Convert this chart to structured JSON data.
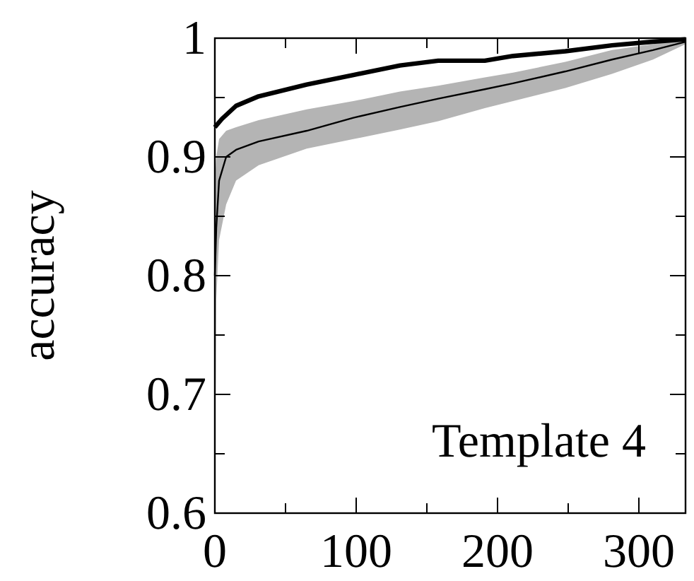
{
  "chart_data": {
    "type": "line",
    "ylabel": "accuracy",
    "annotations": [
      "Template 4"
    ],
    "xlim": [
      0,
      333
    ],
    "ylim": [
      0.6,
      1
    ],
    "xticks": [
      0,
      {
        "value": 50,
        "label": null
      },
      100,
      {
        "value": 150,
        "label": null
      },
      200,
      {
        "value": 250,
        "label": null
      },
      300
    ],
    "yticks": [
      0.6,
      {
        "value": 0.65,
        "label": null
      },
      0.7,
      {
        "value": 0.75,
        "label": null
      },
      0.8,
      {
        "value": 0.85,
        "label": null
      },
      0.9,
      {
        "value": 0.95,
        "label": null
      },
      1
    ],
    "grid": false,
    "line_style": "solid",
    "marker": "none",
    "series": [
      {
        "color": "#000000",
        "x": [
          0,
          1,
          3,
          8,
          15,
          31,
          65,
          98,
          131,
          158,
          191,
          211,
          248,
          281,
          310,
          333
        ],
        "values": [
          0.8,
          0.84,
          0.88,
          0.9,
          0.906,
          0.913,
          0.922,
          0.933,
          0.942,
          0.949,
          0.957,
          0.962,
          0.972,
          0.982,
          0.99,
          0.997
        ],
        "lower": [
          0.62,
          0.78,
          0.83,
          0.86,
          0.88,
          0.893,
          0.907,
          0.915,
          0.923,
          0.93,
          0.941,
          0.947,
          0.958,
          0.97,
          0.982,
          0.995
        ],
        "upper": [
          0.88,
          0.9,
          0.915,
          0.922,
          0.925,
          0.931,
          0.94,
          0.947,
          0.955,
          0.96,
          0.967,
          0.971,
          0.98,
          0.99,
          0.995,
          1.0
        ]
      },
      {
        "color": "#000000",
        "x": [
          0,
          5,
          15,
          31,
          65,
          98,
          131,
          158,
          191,
          211,
          248,
          281,
          310,
          333
        ],
        "values": [
          0.925,
          0.932,
          0.943,
          0.951,
          0.961,
          0.969,
          0.977,
          0.981,
          0.981,
          0.985,
          0.989,
          0.994,
          0.997,
          0.999
        ]
      }
    ]
  }
}
